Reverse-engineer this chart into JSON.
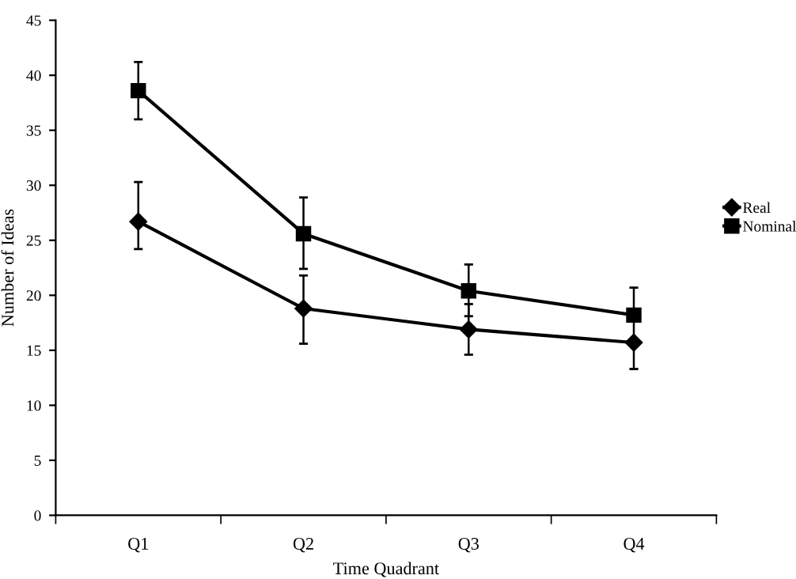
{
  "chart_data": {
    "type": "line",
    "xlabel": "Time Quadrant",
    "ylabel": "Number of Ideas",
    "categories": [
      "Q1",
      "Q2",
      "Q3",
      "Q4"
    ],
    "series": [
      {
        "name": "Real",
        "color": "#000000",
        "marker": "diamond",
        "values": [
          26.7,
          18.8,
          16.9,
          15.7
        ],
        "errors": [
          [
            24.2,
            30.3
          ],
          [
            15.6,
            21.8
          ],
          [
            14.6,
            19.2
          ],
          [
            13.3,
            15.7
          ]
        ]
      },
      {
        "name": "Nominal",
        "color": "#000000",
        "marker": "square",
        "values": [
          38.6,
          25.6,
          20.4,
          18.2
        ],
        "errors": [
          [
            36.0,
            41.2
          ],
          [
            22.4,
            28.9
          ],
          [
            18.1,
            22.8
          ],
          [
            15.8,
            20.7
          ]
        ]
      }
    ],
    "ylim": [
      0,
      45
    ],
    "yticks": [
      0,
      5,
      10,
      15,
      20,
      25,
      30,
      35,
      40,
      45
    ],
    "grid": false,
    "legend": "right",
    "line_style": "solid"
  }
}
